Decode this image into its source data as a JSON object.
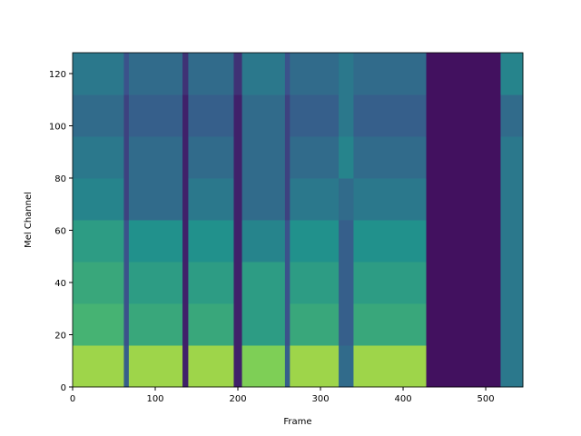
{
  "chart_data": {
    "type": "heatmap",
    "x_label": "Frame",
    "y_label": "Mel Channel",
    "colormap": "viridis",
    "xlim": [
      0,
      545
    ],
    "xticks": [
      0,
      100,
      200,
      300,
      400,
      500
    ],
    "ylim": [
      0,
      128
    ],
    "yticks": [
      0,
      20,
      40,
      60,
      80,
      100,
      120
    ],
    "x_edges": [
      0,
      62,
      68,
      133,
      140,
      195,
      205,
      257,
      263,
      322,
      340,
      428,
      518,
      545
    ],
    "y_edges": [
      0,
      16,
      32,
      48,
      64,
      80,
      96,
      112,
      128
    ],
    "values": [
      [
        0.85,
        0.3,
        0.85,
        0.1,
        0.85,
        0.1,
        0.8,
        0.3,
        0.85,
        0.35,
        0.85,
        0.05,
        0.4
      ],
      [
        0.65,
        0.25,
        0.6,
        0.1,
        0.6,
        0.1,
        0.55,
        0.25,
        0.6,
        0.3,
        0.6,
        0.05,
        0.4
      ],
      [
        0.6,
        0.25,
        0.55,
        0.1,
        0.55,
        0.1,
        0.55,
        0.25,
        0.55,
        0.3,
        0.55,
        0.05,
        0.4
      ],
      [
        0.55,
        0.25,
        0.5,
        0.1,
        0.5,
        0.1,
        0.45,
        0.25,
        0.5,
        0.3,
        0.5,
        0.05,
        0.4
      ],
      [
        0.45,
        0.2,
        0.35,
        0.1,
        0.4,
        0.1,
        0.35,
        0.2,
        0.4,
        0.35,
        0.4,
        0.05,
        0.4
      ],
      [
        0.4,
        0.2,
        0.35,
        0.1,
        0.35,
        0.1,
        0.35,
        0.2,
        0.35,
        0.45,
        0.35,
        0.05,
        0.4
      ],
      [
        0.35,
        0.2,
        0.3,
        0.1,
        0.3,
        0.1,
        0.35,
        0.2,
        0.3,
        0.4,
        0.3,
        0.05,
        0.35
      ],
      [
        0.4,
        0.25,
        0.35,
        0.15,
        0.35,
        0.15,
        0.4,
        0.25,
        0.35,
        0.4,
        0.35,
        0.05,
        0.45
      ]
    ]
  }
}
